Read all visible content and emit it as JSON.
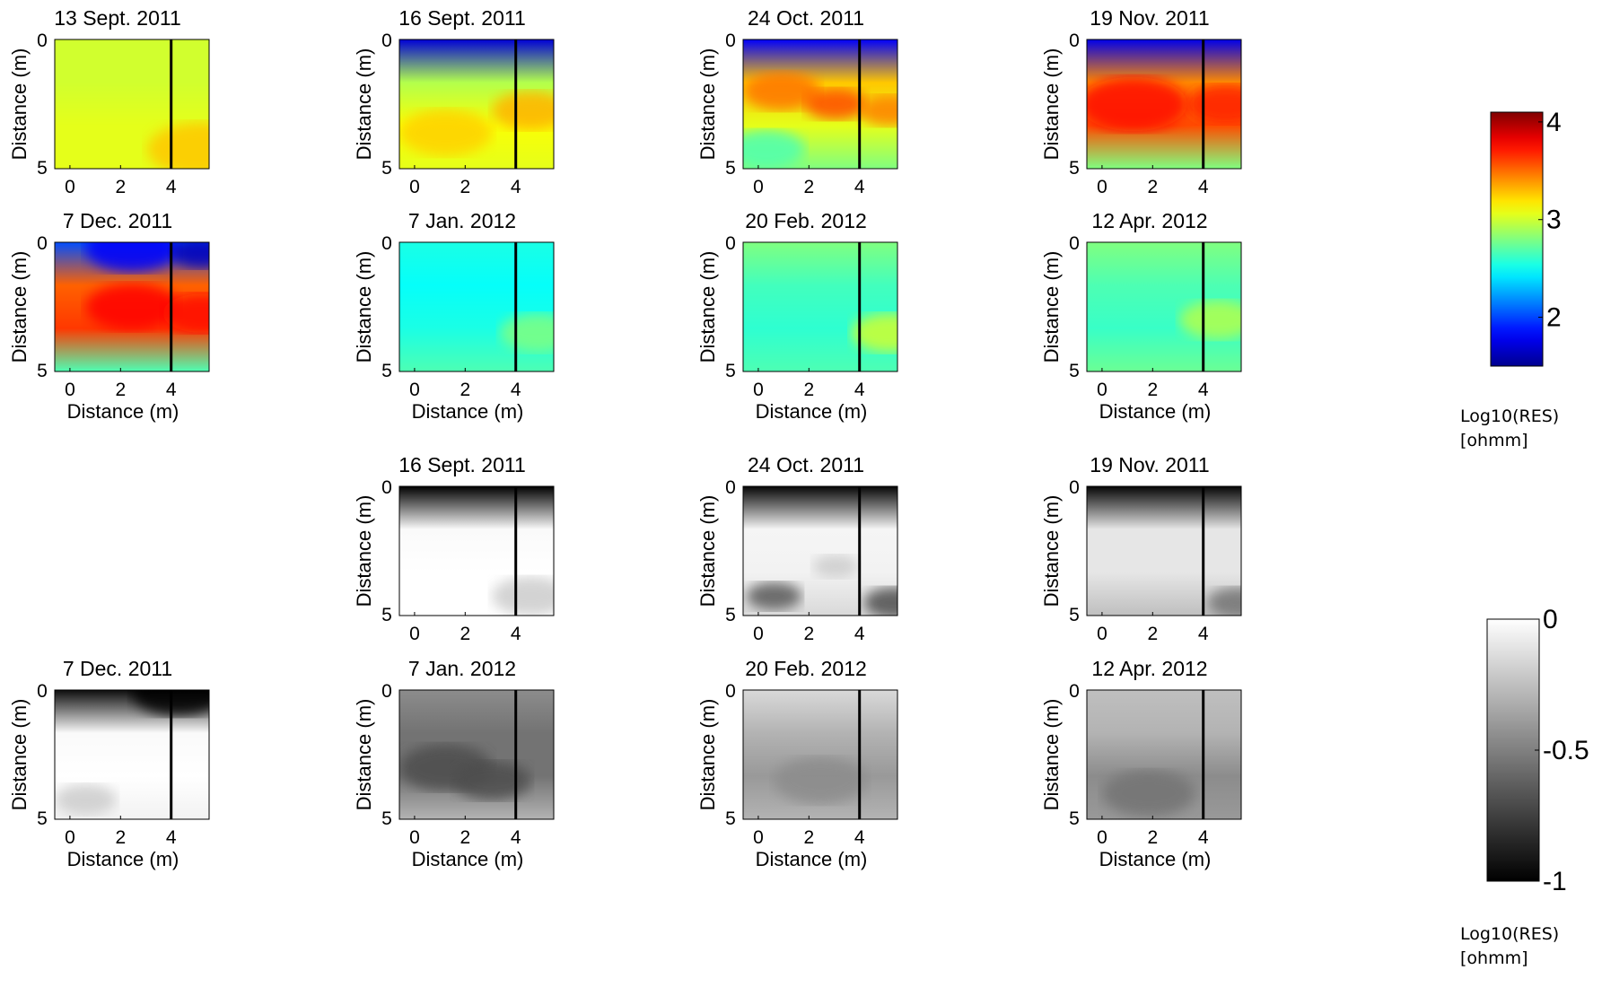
{
  "chart_data": {
    "type": "heatmap",
    "xlabel": "Distance (m)",
    "ylabel": "Distance (m)",
    "xlim": [
      -0.6,
      5.5
    ],
    "ylim": [
      5,
      0
    ],
    "xticks": [
      "0",
      "2",
      "4"
    ],
    "yticks": [
      "0",
      "5"
    ],
    "vertical_marker_x": 4,
    "colorbars": [
      {
        "colormap": "jet",
        "range": [
          1.5,
          4.1
        ],
        "ticks": [
          "2",
          "3",
          "4"
        ],
        "label_line1": "Log10(RES)",
        "label_line2": "[ohmm]"
      },
      {
        "colormap": "gray",
        "range": [
          -1,
          0
        ],
        "ticks": [
          "0",
          "-0.5",
          "-1"
        ],
        "label_line1": "Log10(RES)",
        "label_line2": "[ohmm]"
      }
    ],
    "resistivity_panels": [
      {
        "title": "13 Sept. 2011",
        "colormap": "jet",
        "x_ticks_shown": true,
        "x_label_shown": false,
        "top_tick": "0"
      },
      {
        "title": "16 Sept. 2011",
        "colormap": "jet",
        "x_ticks_shown": true,
        "x_label_shown": false,
        "top_tick": "0"
      },
      {
        "title": "24 Oct. 2011",
        "colormap": "jet",
        "x_ticks_shown": true,
        "x_label_shown": false,
        "top_tick": "0"
      },
      {
        "title": "19 Nov. 2011",
        "colormap": "jet",
        "x_ticks_shown": true,
        "x_label_shown": false,
        "top_tick": "0"
      },
      {
        "title": "7 Dec. 2011",
        "colormap": "jet",
        "x_ticks_shown": true,
        "x_label_shown": true,
        "top_tick": "0"
      },
      {
        "title": "7 Jan. 2012",
        "colormap": "jet",
        "x_ticks_shown": true,
        "x_label_shown": true,
        "top_tick": "0"
      },
      {
        "title": "20 Feb. 2012",
        "colormap": "jet",
        "x_ticks_shown": true,
        "x_label_shown": true,
        "top_tick": "0"
      },
      {
        "title": "12 Apr. 2012",
        "colormap": "jet",
        "x_ticks_shown": true,
        "x_label_shown": true,
        "top_tick": "0"
      }
    ],
    "ratio_panels": [
      {
        "title": "16 Sept. 2011",
        "colormap": "gray",
        "x_ticks_shown": true,
        "x_label_shown": false,
        "top_tick": "0"
      },
      {
        "title": "24 Oct. 2011",
        "colormap": "gray",
        "x_ticks_shown": true,
        "x_label_shown": false,
        "top_tick": "0"
      },
      {
        "title": "19 Nov. 2011",
        "colormap": "gray",
        "x_ticks_shown": true,
        "x_label_shown": false,
        "top_tick": "0"
      },
      {
        "title": "7 Dec. 2011",
        "colormap": "gray",
        "x_ticks_shown": true,
        "x_label_shown": true,
        "top_tick": "0"
      },
      {
        "title": "7 Jan. 2012",
        "colormap": "gray",
        "x_ticks_shown": true,
        "x_label_shown": true,
        "top_tick": "0"
      },
      {
        "title": "20 Feb. 2012",
        "colormap": "gray",
        "x_ticks_shown": true,
        "x_label_shown": true,
        "top_tick": "0"
      },
      {
        "title": "12 Apr. 2012",
        "colormap": "gray",
        "x_ticks_shown": true,
        "x_label_shown": true,
        "top_tick": "0"
      }
    ]
  }
}
